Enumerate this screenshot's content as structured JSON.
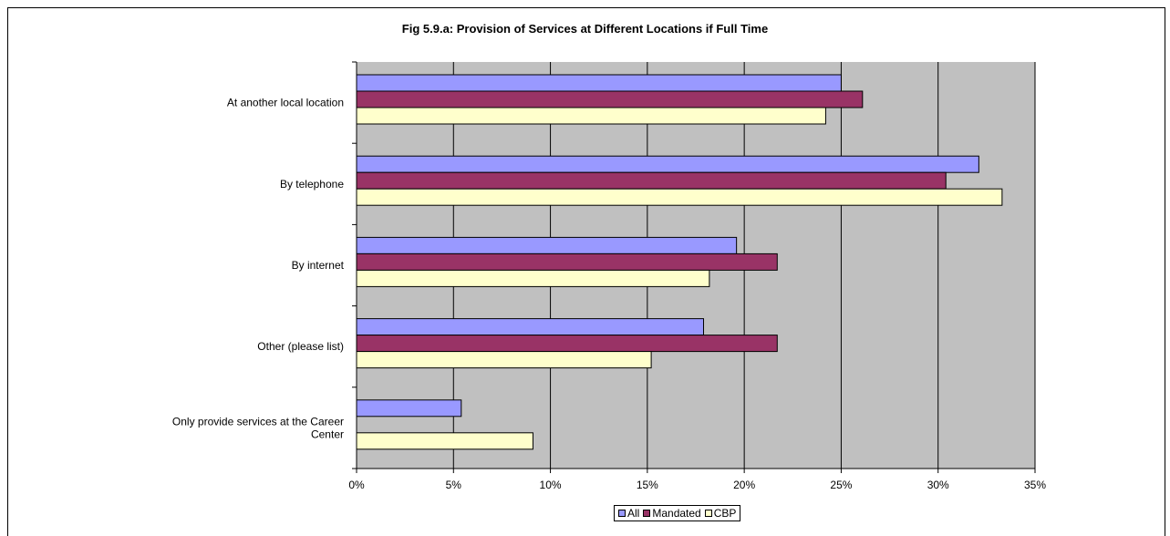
{
  "chart_data": {
    "type": "bar",
    "orientation": "horizontal",
    "title": "Fig 5.9.a: Provision of Services at Different Locations if Full Time",
    "categories": [
      "At another local location",
      "By telephone",
      "By internet",
      "Other (please list)",
      "Only provide services at the Career Center"
    ],
    "series": [
      {
        "name": "All",
        "color": "#9999ff",
        "values": [
          25.0,
          32.1,
          19.6,
          17.9,
          5.4
        ]
      },
      {
        "name": "Mandated",
        "color": "#993366",
        "values": [
          26.1,
          30.4,
          21.7,
          21.7,
          0
        ]
      },
      {
        "name": "CBP",
        "color": "#ffffcc",
        "values": [
          24.2,
          33.3,
          18.2,
          15.2,
          9.1
        ]
      }
    ],
    "xlim": [
      0,
      35
    ],
    "xticks": [
      "0%",
      "5%",
      "10%",
      "15%",
      "20%",
      "25%",
      "30%",
      "35%"
    ],
    "plot_background": "#c0c0c0",
    "grid": true,
    "legend_position": "bottom"
  }
}
